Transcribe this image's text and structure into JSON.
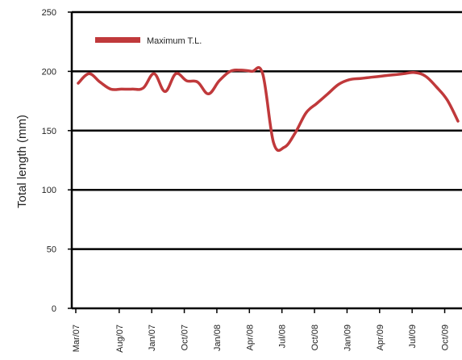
{
  "chart_data": {
    "type": "line",
    "title": "",
    "xlabel": "",
    "ylabel": "Total length (mm)",
    "ylim": [
      0,
      250
    ],
    "yticks": [
      0,
      50,
      100,
      150,
      200,
      250
    ],
    "grid": "horizontal",
    "legend_position": "top-left",
    "x_tick_labels": [
      "Mar/07",
      "Aug/07",
      "Jan/07",
      "Oct/07",
      "Jan/08",
      "Apr/08",
      "Jul/08",
      "Oct/08",
      "Jan/09",
      "Apr/09",
      "Jul/09",
      "Oct/09"
    ],
    "series": [
      {
        "name": "Maximum T.L.",
        "color": "#c0393b",
        "x": [
          "Mar/07",
          "Apr/07",
          "May/07",
          "Jun/07",
          "Jul/07",
          "Aug/07",
          "Jan/07",
          "Sep/07",
          "Oct/07",
          "Nov/07",
          "Dec/07",
          "Dec/07",
          "Jan/08",
          "Feb/08",
          "Feb/08",
          "Mar/08",
          "Apr/08",
          "May/08",
          "Jun/08",
          "Jul/08",
          "Aug/08",
          "Aug/08",
          "Sep/08",
          "Oct/08",
          "Nov/08",
          "Dec/08",
          "Jan/09",
          "Feb/09",
          "Mar/09",
          "Apr/09",
          "May/09",
          "Jun/09",
          "Jul/09",
          "Aug/09",
          "Sep/09",
          "Oct/09"
        ],
        "values": [
          190,
          198,
          191,
          185,
          185,
          185,
          186,
          198,
          183,
          198,
          192,
          191,
          181,
          192,
          200,
          201,
          200,
          198,
          140,
          136,
          148,
          165,
          173,
          181,
          189,
          193,
          194,
          195,
          196,
          197,
          198,
          199,
          196,
          187,
          176,
          158
        ]
      }
    ]
  }
}
